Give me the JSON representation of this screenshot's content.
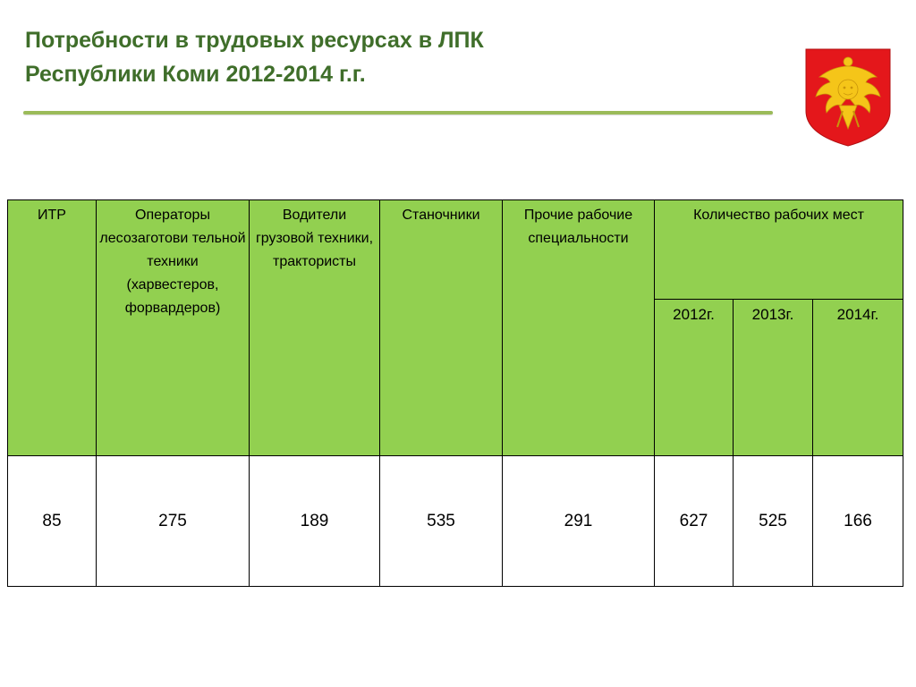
{
  "slide": {
    "title_line1": "Потребности в трудовых ресурсах в ЛПК",
    "title_line2": "Республики Коми 2012-2014 г.г."
  },
  "emblem": {
    "icon": "komi-coat-of-arms-icon",
    "colors": {
      "shield": "#e4171b",
      "bird": "#f5c519"
    }
  },
  "colors": {
    "title": "#3f6e2a",
    "rule": "#9bbb59",
    "header_fill": "#92d050"
  },
  "table": {
    "headers": {
      "itr": "ИТР",
      "operators": "Операторы лесозаготови тельной техники (харвестеров, форвардеров)",
      "drivers": "Водители грузовой техники, трактористы",
      "machinists": "Станочники",
      "other": "Прочие рабочие специальности",
      "jobs_group": "Количество рабочих мест",
      "years": [
        "2012г.",
        "2013г.",
        "2014г."
      ]
    },
    "values": {
      "itr": "85",
      "operators": "275",
      "drivers": "189",
      "machinists": "535",
      "other": "291",
      "jobs": [
        "627",
        "525",
        "166"
      ]
    }
  }
}
